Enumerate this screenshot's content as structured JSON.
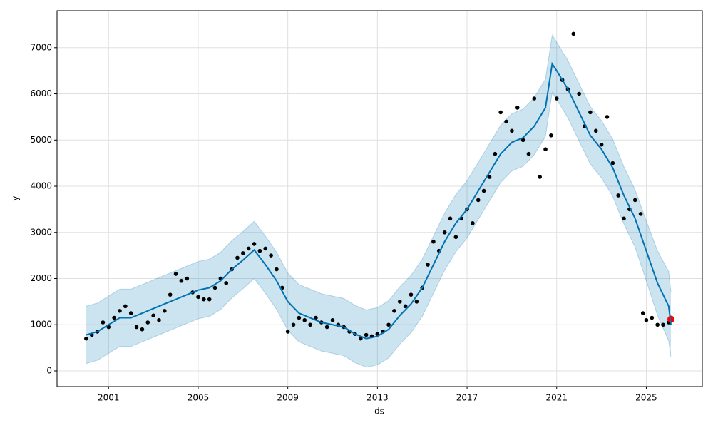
{
  "chart_data": {
    "type": "line",
    "xlabel": "ds",
    "ylabel": "y",
    "xlim": [
      1998.7,
      2027.5
    ],
    "ylim": [
      -340,
      7800
    ],
    "xticks": [
      2001,
      2005,
      2009,
      2013,
      2017,
      2021,
      2025
    ],
    "yticks": [
      0,
      1000,
      2000,
      3000,
      4000,
      5000,
      6000,
      7000
    ],
    "grid": true,
    "x": [
      2000.0,
      2000.5,
      2001.0,
      2001.5,
      2002.0,
      2002.5,
      2003.0,
      2003.5,
      2004.0,
      2004.5,
      2005.0,
      2005.5,
      2006.0,
      2006.5,
      2007.0,
      2007.5,
      2008.0,
      2008.5,
      2009.0,
      2009.5,
      2010.0,
      2010.5,
      2011.0,
      2011.5,
      2012.0,
      2012.5,
      2013.0,
      2013.5,
      2014.0,
      2014.5,
      2015.0,
      2015.5,
      2016.0,
      2016.5,
      2017.0,
      2017.5,
      2018.0,
      2018.5,
      2019.0,
      2019.5,
      2020.0,
      2020.5,
      2020.8,
      2021.0,
      2021.5,
      2022.0,
      2022.5,
      2023.0,
      2023.5,
      2024.0,
      2024.5,
      2025.0,
      2025.5,
      2026.0,
      2026.1
    ],
    "series": [
      {
        "color": "#0072b2",
        "band_color": "#0072b2",
        "values": [
          780,
          850,
          1000,
          1150,
          1150,
          1250,
          1350,
          1450,
          1550,
          1650,
          1750,
          1800,
          1950,
          2200,
          2400,
          2620,
          2300,
          1950,
          1500,
          1250,
          1150,
          1050,
          1000,
          950,
          800,
          700,
          750,
          900,
          1200,
          1450,
          1800,
          2300,
          2800,
          3200,
          3500,
          3900,
          4300,
          4700,
          4950,
          5050,
          5300,
          5700,
          6650,
          6500,
          6100,
          5600,
          5100,
          4800,
          4400,
          3800,
          3300,
          2600,
          1900,
          1400,
          1000
        ],
        "upper": [
          1400,
          1470,
          1620,
          1770,
          1770,
          1870,
          1970,
          2070,
          2170,
          2270,
          2370,
          2420,
          2570,
          2820,
          3020,
          3240,
          2920,
          2570,
          2120,
          1870,
          1770,
          1670,
          1620,
          1570,
          1420,
          1320,
          1370,
          1520,
          1820,
          2070,
          2420,
          2920,
          3420,
          3820,
          4120,
          4520,
          4920,
          5320,
          5570,
          5670,
          5920,
          6320,
          7270,
          7120,
          6720,
          6220,
          5720,
          5420,
          5020,
          4420,
          3920,
          3250,
          2600,
          2150,
          1700
        ],
        "lower": [
          160,
          230,
          380,
          530,
          530,
          630,
          730,
          830,
          930,
          1030,
          1130,
          1180,
          1330,
          1580,
          1780,
          2000,
          1680,
          1330,
          880,
          630,
          530,
          430,
          380,
          330,
          180,
          80,
          130,
          280,
          580,
          830,
          1180,
          1680,
          2180,
          2580,
          2880,
          3280,
          3680,
          4080,
          4330,
          4430,
          4680,
          5080,
          6030,
          5880,
          5480,
          4980,
          4480,
          4180,
          3780,
          3180,
          2680,
          1950,
          1200,
          650,
          300
        ]
      }
    ],
    "points": [
      {
        "color": "#000000",
        "x": [
          2000.0,
          2000.25,
          2000.5,
          2000.75,
          2001.0,
          2001.25,
          2001.5,
          2001.75,
          2002.0,
          2002.25,
          2002.5,
          2002.75,
          2003.0,
          2003.25,
          2003.5,
          2003.75,
          2004.0,
          2004.25,
          2004.5,
          2004.75,
          2005.0,
          2005.25,
          2005.5,
          2005.75,
          2006.0,
          2006.25,
          2006.5,
          2006.75,
          2007.0,
          2007.25,
          2007.5,
          2007.75,
          2008.0,
          2008.25,
          2008.5,
          2008.75,
          2009.0,
          2009.25,
          2009.5,
          2009.75,
          2010.0,
          2010.25,
          2010.5,
          2010.75,
          2011.0,
          2011.25,
          2011.5,
          2011.75,
          2012.0,
          2012.25,
          2012.5,
          2012.75,
          2013.0,
          2013.25,
          2013.5,
          2013.75,
          2014.0,
          2014.25,
          2014.5,
          2014.75,
          2015.0,
          2015.25,
          2015.5,
          2015.75,
          2016.0,
          2016.25,
          2016.5,
          2016.75,
          2017.0,
          2017.25,
          2017.5,
          2017.75,
          2018.0,
          2018.25,
          2018.5,
          2018.75,
          2019.0,
          2019.25,
          2019.5,
          2019.75,
          2020.0,
          2020.25,
          2020.5,
          2020.75,
          2021.0,
          2021.25,
          2021.5,
          2021.75,
          2022.0,
          2022.25,
          2022.5,
          2022.75,
          2023.0,
          2023.25,
          2023.5,
          2023.75,
          2024.0,
          2024.25,
          2024.5,
          2024.75,
          2024.85,
          2025.0,
          2025.25,
          2025.5,
          2025.75,
          2026.0
        ],
        "values": [
          700,
          780,
          850,
          1050,
          950,
          1150,
          1300,
          1400,
          1250,
          950,
          900,
          1050,
          1200,
          1100,
          1300,
          1650,
          2100,
          1950,
          2000,
          1700,
          1600,
          1550,
          1550,
          1800,
          2000,
          1900,
          2200,
          2450,
          2550,
          2650,
          2750,
          2600,
          2650,
          2500,
          2200,
          1800,
          850,
          1000,
          1150,
          1100,
          1000,
          1150,
          1050,
          950,
          1100,
          1000,
          950,
          850,
          800,
          700,
          780,
          750,
          800,
          850,
          1000,
          1300,
          1500,
          1400,
          1650,
          1500,
          1800,
          2300,
          2800,
          2600,
          3000,
          3300,
          2900,
          3300,
          3500,
          3200,
          3700,
          3900,
          4200,
          4700,
          5600,
          5400,
          5200,
          5700,
          5000,
          4700,
          5900,
          4200,
          4800,
          5100,
          5900,
          6300,
          6100,
          7300,
          6000,
          5300,
          5600,
          5200,
          4900,
          5500,
          4500,
          3800,
          3300,
          3500,
          3700,
          3400,
          1250,
          1100,
          1150,
          1000,
          1000,
          1050
        ]
      },
      {
        "color": "#ff0000",
        "x": [
          2026.1
        ],
        "values": [
          1120
        ]
      }
    ]
  }
}
